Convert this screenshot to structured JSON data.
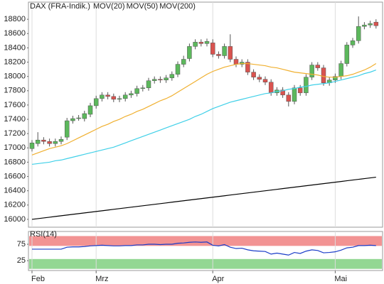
{
  "chart_data": [
    {
      "type": "candlestick",
      "name": "DAX (FRA-Indik.)",
      "name_color": "#808080",
      "up_color": "#5cb85c",
      "down_color": "#d9534f",
      "open": [
        16990,
        17060,
        17110,
        17090,
        17060,
        17090,
        17150,
        17380,
        17420,
        17410,
        17470,
        17590,
        17690,
        17740,
        17720,
        17680,
        17690,
        17740,
        17760,
        17830,
        17840,
        17940,
        17960,
        17950,
        17980,
        18030,
        18170,
        18250,
        18420,
        18480,
        18460,
        18470,
        18310,
        18290,
        18420,
        18240,
        18170,
        18200,
        18060,
        17990,
        17960,
        17920,
        17770,
        17810,
        17740,
        17650,
        17840,
        17770,
        17990,
        18160,
        18120,
        17910,
        17950,
        18000,
        18180,
        18440,
        18500,
        18700,
        18720,
        18760
      ],
      "high": [
        17110,
        17220,
        17150,
        17130,
        17130,
        17160,
        17420,
        17450,
        17460,
        17520,
        17630,
        17730,
        17780,
        17780,
        17760,
        17730,
        17780,
        17800,
        17870,
        17880,
        17980,
        18000,
        18000,
        18020,
        18070,
        18210,
        18290,
        18460,
        18520,
        18520,
        18530,
        18520,
        18350,
        18460,
        18590,
        18280,
        18240,
        18240,
        18100,
        18030,
        18000,
        17960,
        17850,
        17850,
        17780,
        17880,
        17880,
        18030,
        18200,
        18200,
        18160,
        17990,
        18040,
        18220,
        18480,
        18540,
        18840,
        18760,
        18780,
        18800
      ],
      "low": [
        16950,
        17020,
        17050,
        17020,
        17020,
        17050,
        17110,
        17340,
        17380,
        17370,
        17430,
        17550,
        17650,
        17680,
        17640,
        17640,
        17650,
        17700,
        17720,
        17790,
        17800,
        17900,
        17910,
        17910,
        17940,
        17990,
        18130,
        18210,
        18380,
        18420,
        18420,
        18270,
        18250,
        18250,
        18200,
        18130,
        18130,
        18020,
        17950,
        17920,
        17880,
        17730,
        17730,
        17700,
        17580,
        17610,
        17730,
        17730,
        17950,
        18080,
        17870,
        17870,
        17910,
        17960,
        18140,
        18400,
        18460,
        18660,
        18680,
        18670
      ],
      "close": [
        17070,
        17110,
        17090,
        17060,
        17090,
        17120,
        17380,
        17410,
        17420,
        17480,
        17590,
        17690,
        17740,
        17720,
        17680,
        17690,
        17740,
        17760,
        17830,
        17840,
        17940,
        17960,
        17950,
        17980,
        18030,
        18170,
        18240,
        18420,
        18480,
        18460,
        18490,
        18310,
        18290,
        18420,
        18240,
        18170,
        18200,
        18060,
        17990,
        17960,
        17920,
        17770,
        17810,
        17740,
        17650,
        17840,
        17770,
        17990,
        18160,
        18120,
        17910,
        17950,
        18000,
        18180,
        18440,
        18500,
        18700,
        18720,
        18740,
        18710
      ],
      "series": [
        {
          "name": "MOV(20)",
          "color": "#f0b030",
          "values": [
            16900,
            16930,
            16960,
            16990,
            17010,
            17030,
            17060,
            17100,
            17140,
            17180,
            17220,
            17260,
            17300,
            17330,
            17370,
            17400,
            17440,
            17470,
            17510,
            17540,
            17580,
            17620,
            17660,
            17690,
            17730,
            17780,
            17830,
            17880,
            17930,
            17980,
            18030,
            18070,
            18100,
            18130,
            18150,
            18170,
            18180,
            18180,
            18170,
            18160,
            18150,
            18130,
            18120,
            18100,
            18080,
            18060,
            18050,
            18040,
            18030,
            18020,
            18000,
            17990,
            17990,
            18000,
            18010,
            18030,
            18060,
            18090,
            18130,
            18180
          ]
        },
        {
          "name": "MOV(50)",
          "color": "#40d0e8",
          "values": [
            16770,
            16780,
            16790,
            16800,
            16820,
            16830,
            16850,
            16870,
            16890,
            16910,
            16930,
            16950,
            16970,
            16990,
            17010,
            17040,
            17070,
            17100,
            17130,
            17160,
            17190,
            17220,
            17250,
            17280,
            17310,
            17340,
            17370,
            17400,
            17440,
            17470,
            17510,
            17550,
            17580,
            17610,
            17640,
            17660,
            17680,
            17700,
            17720,
            17740,
            17760,
            17770,
            17790,
            17800,
            17820,
            17830,
            17850,
            17860,
            17880,
            17890,
            17900,
            17910,
            17930,
            17950,
            17970,
            17990,
            18010,
            18040,
            18060,
            18090
          ]
        },
        {
          "name": "MOV(200)",
          "color": "#000000",
          "values": [
            16000,
            16010,
            16020,
            16030,
            16040,
            16050,
            16060,
            16070,
            16080,
            16090,
            16100,
            16110,
            16120,
            16130,
            16140,
            16150,
            16160,
            16170,
            16180,
            16190,
            16200,
            16210,
            16220,
            16230,
            16240,
            16250,
            16260,
            16270,
            16280,
            16290,
            16300,
            16310,
            16320,
            16330,
            16340,
            16350,
            16360,
            16370,
            16380,
            16390,
            16400,
            16410,
            16420,
            16430,
            16440,
            16450,
            16460,
            16470,
            16480,
            16490,
            16500,
            16510,
            16520,
            16530,
            16540,
            16550,
            16560,
            16570,
            16580,
            16590
          ]
        }
      ],
      "ylim": [
        15890,
        19040
      ],
      "yticks": [
        16000,
        16200,
        16400,
        16600,
        16800,
        17000,
        17200,
        17400,
        17600,
        17800,
        18000,
        18200,
        18400,
        18600,
        18800
      ],
      "grid": true
    },
    {
      "type": "line",
      "categories": [
        "Feb",
        null,
        null,
        null,
        null,
        null,
        null,
        null,
        null,
        null,
        null,
        "Mrz",
        null,
        null,
        null,
        null,
        null,
        null,
        null,
        null,
        null,
        null,
        null,
        null,
        null,
        null,
        null,
        null,
        null,
        null,
        null,
        "Apr",
        null,
        null,
        null,
        null,
        null,
        null,
        null,
        null,
        null,
        null,
        null,
        null,
        null,
        null,
        null,
        null,
        null,
        null,
        null,
        null,
        "Mai",
        null,
        null,
        null,
        null,
        null,
        null,
        null
      ],
      "series": [
        {
          "name": "RSI(14)",
          "color": "#1a3cc8",
          "values": [
            60,
            60,
            60,
            60,
            60,
            60,
            66,
            67,
            67,
            68,
            70,
            71,
            72,
            71,
            70,
            70,
            71,
            71,
            73,
            73,
            75,
            75,
            74,
            75,
            75,
            78,
            79,
            81,
            82,
            81,
            82,
            72,
            70,
            74,
            66,
            62,
            63,
            58,
            55,
            54,
            53,
            45,
            48,
            45,
            42,
            50,
            47,
            54,
            58,
            56,
            49,
            50,
            52,
            57,
            64,
            66,
            71,
            71,
            72,
            71
          ]
        }
      ],
      "zones": [
        {
          "from": 70,
          "to": 100,
          "color": "#f08080"
        },
        {
          "from": 0,
          "to": 30,
          "color": "#80d080"
        }
      ],
      "ylim": [
        -5,
        114
      ],
      "yticks": [
        25,
        75
      ],
      "grid": true
    }
  ]
}
